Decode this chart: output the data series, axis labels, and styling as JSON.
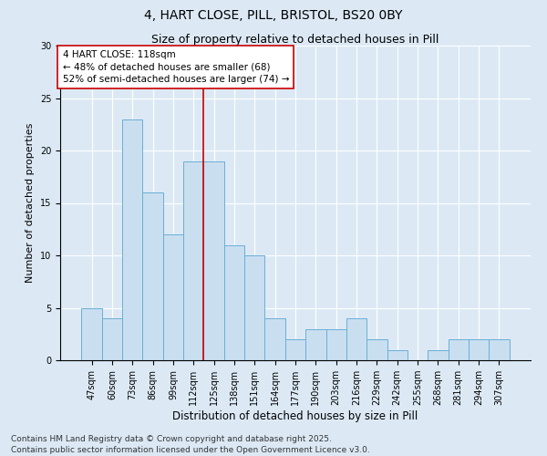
{
  "title": "4, HART CLOSE, PILL, BRISTOL, BS20 0BY",
  "subtitle": "Size of property relative to detached houses in Pill",
  "xlabel": "Distribution of detached houses by size in Pill",
  "ylabel": "Number of detached properties",
  "bar_labels": [
    "47sqm",
    "60sqm",
    "73sqm",
    "86sqm",
    "99sqm",
    "112sqm",
    "125sqm",
    "138sqm",
    "151sqm",
    "164sqm",
    "177sqm",
    "190sqm",
    "203sqm",
    "216sqm",
    "229sqm",
    "242sqm",
    "255sqm",
    "268sqm",
    "281sqm",
    "294sqm",
    "307sqm"
  ],
  "bar_values": [
    5,
    4,
    23,
    16,
    12,
    19,
    19,
    11,
    10,
    4,
    2,
    3,
    3,
    4,
    2,
    1,
    0,
    1,
    2,
    2,
    2
  ],
  "bar_color": "#c9dff0",
  "bar_edge_color": "#6aaed6",
  "background_color": "#dce9f5",
  "grid_color": "#ffffff",
  "vline_x": 5.5,
  "vline_color": "#cc0000",
  "annotation_text": "4 HART CLOSE: 118sqm\n← 48% of detached houses are smaller (68)\n52% of semi-detached houses are larger (74) →",
  "ylim": [
    0,
    30
  ],
  "yticks": [
    0,
    5,
    10,
    15,
    20,
    25,
    30
  ],
  "footer": "Contains HM Land Registry data © Crown copyright and database right 2025.\nContains public sector information licensed under the Open Government Licence v3.0.",
  "title_fontsize": 10,
  "subtitle_fontsize": 9,
  "xlabel_fontsize": 8.5,
  "ylabel_fontsize": 8,
  "tick_fontsize": 7,
  "annotation_fontsize": 7.5,
  "footer_fontsize": 6.5
}
